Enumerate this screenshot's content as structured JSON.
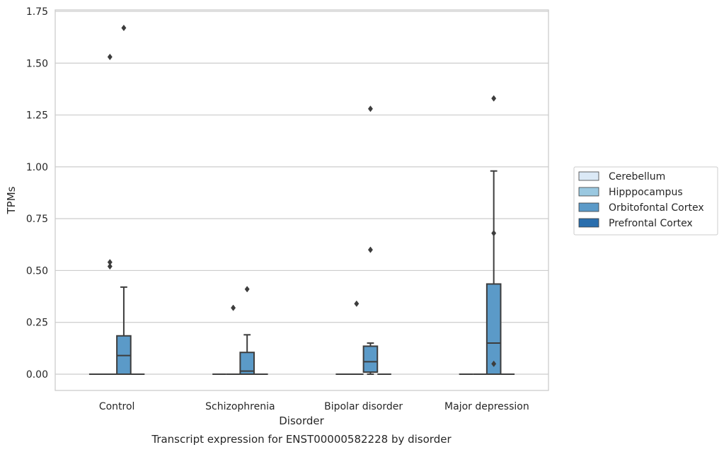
{
  "chart_data": {
    "type": "box",
    "title": "",
    "caption": "Transcript expression for ENST00000582228 by disorder",
    "xlabel": "Disorder",
    "ylabel": "TPMs",
    "ylim": [
      -0.08,
      1.75
    ],
    "yticks": [
      0.0,
      0.25,
      0.5,
      0.75,
      1.0,
      1.25,
      1.5,
      1.75
    ],
    "ytick_labels": [
      "0.00",
      "0.25",
      "0.50",
      "0.75",
      "1.00",
      "1.25",
      "1.50",
      "1.75"
    ],
    "grid": "horizontal",
    "legend_position": "right",
    "categories": [
      "Control",
      "Schizophrenia",
      "Bipolar disorder",
      "Major depression"
    ],
    "series": [
      {
        "name": "Cerebellum",
        "color": "#dbe9f6",
        "boxes": [
          {
            "q1": 0,
            "median": 0,
            "q3": 0,
            "whisker_low": 0,
            "whisker_high": 0,
            "outliers": []
          },
          {
            "q1": 0,
            "median": 0,
            "q3": 0,
            "whisker_low": 0,
            "whisker_high": 0,
            "outliers": []
          },
          {
            "q1": 0,
            "median": 0,
            "q3": 0,
            "whisker_low": 0,
            "whisker_high": 0,
            "outliers": []
          },
          {
            "q1": 0,
            "median": 0,
            "q3": 0,
            "whisker_low": 0,
            "whisker_high": 0,
            "outliers": []
          }
        ]
      },
      {
        "name": "Hipppocampus",
        "color": "#9ac8e0",
        "boxes": [
          {
            "q1": 0,
            "median": 0,
            "q3": 0,
            "whisker_low": 0,
            "whisker_high": 0,
            "outliers": [
              0.54,
              0.52,
              1.53
            ]
          },
          {
            "q1": 0,
            "median": 0,
            "q3": 0,
            "whisker_low": 0,
            "whisker_high": 0,
            "outliers": [
              0.32
            ]
          },
          {
            "q1": 0,
            "median": 0,
            "q3": 0,
            "whisker_low": 0,
            "whisker_high": 0,
            "outliers": [
              0.34
            ]
          },
          {
            "q1": 0,
            "median": 0,
            "q3": 0,
            "whisker_low": 0,
            "whisker_high": 0,
            "outliers": []
          }
        ]
      },
      {
        "name": "Orbitofontal Cortex",
        "color": "#5b9ac8",
        "boxes": [
          {
            "q1": 0,
            "median": 0.09,
            "q3": 0.185,
            "whisker_low": 0,
            "whisker_high": 0.42,
            "outliers": [
              1.67
            ]
          },
          {
            "q1": 0,
            "median": 0.015,
            "q3": 0.105,
            "whisker_low": 0,
            "whisker_high": 0.19,
            "outliers": [
              0.41
            ]
          },
          {
            "q1": 0.01,
            "median": 0.06,
            "q3": 0.135,
            "whisker_low": 0,
            "whisker_high": 0.15,
            "outliers": [
              0.6,
              1.28
            ]
          },
          {
            "q1": 0,
            "median": 0.15,
            "q3": 0.435,
            "whisker_low": 0,
            "whisker_high": 0.98,
            "outliers": [
              0.05,
              0.68,
              1.33
            ]
          }
        ]
      },
      {
        "name": "Prefrontal Cortex",
        "color": "#2a6ead",
        "boxes": [
          {
            "q1": 0,
            "median": 0,
            "q3": 0,
            "whisker_low": 0,
            "whisker_high": 0,
            "outliers": []
          },
          {
            "q1": 0,
            "median": 0,
            "q3": 0,
            "whisker_low": 0,
            "whisker_high": 0,
            "outliers": []
          },
          {
            "q1": 0,
            "median": 0,
            "q3": 0,
            "whisker_low": 0,
            "whisker_high": 0,
            "outliers": []
          },
          {
            "q1": 0,
            "median": 0,
            "q3": 0,
            "whisker_low": 0,
            "whisker_high": 0,
            "outliers": []
          }
        ]
      }
    ]
  }
}
